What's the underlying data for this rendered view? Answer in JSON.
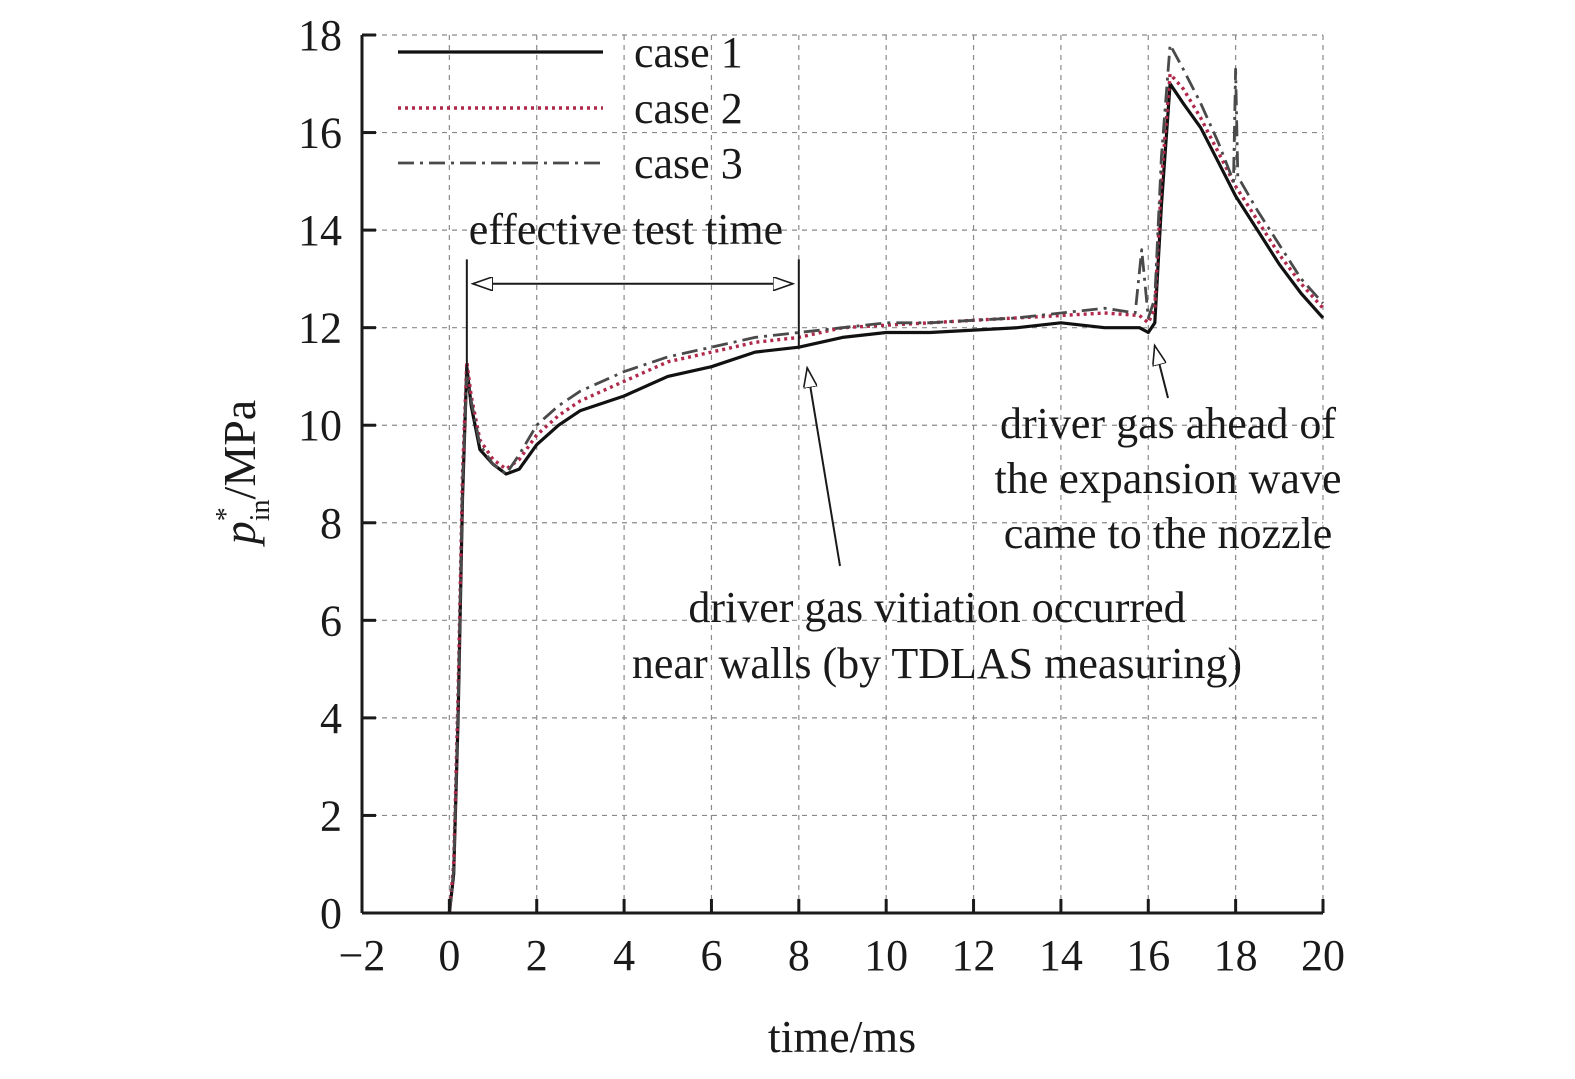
{
  "chart_data": {
    "type": "line",
    "xlabel": "time/ms",
    "ylabel": {
      "base": "p",
      "superscript": "*",
      "subscript": "in",
      "unit": "/MPa"
    },
    "xlim": [
      -2,
      20
    ],
    "ylim": [
      0,
      18
    ],
    "xticks": [
      -2,
      0,
      2,
      4,
      6,
      8,
      10,
      12,
      14,
      16,
      18,
      20
    ],
    "yticks": [
      0,
      2,
      4,
      6,
      8,
      10,
      12,
      14,
      16,
      18
    ],
    "xtick_labels": [
      "−2",
      "0",
      "2",
      "4",
      "6",
      "8",
      "10",
      "12",
      "14",
      "16",
      "18",
      "20"
    ],
    "ytick_labels": [
      "0",
      "2",
      "4",
      "6",
      "8",
      "10",
      "12",
      "14",
      "16",
      "18"
    ],
    "grid": true,
    "legend_placement": "top-left",
    "series": [
      {
        "name": "case 1",
        "color": "#111111",
        "line_style": "solid",
        "x": [
          0.0,
          0.1,
          0.2,
          0.3,
          0.4,
          0.5,
          0.7,
          1.0,
          1.3,
          1.6,
          2.0,
          2.5,
          3.0,
          4.0,
          5.0,
          6.0,
          7.0,
          8.0,
          9.0,
          10.0,
          11.0,
          12.0,
          13.0,
          14.0,
          15.0,
          15.8,
          16.0,
          16.15,
          16.3,
          16.5,
          16.8,
          17.2,
          17.6,
          18.0,
          18.5,
          19.0,
          19.5,
          20.0
        ],
        "y": [
          0.0,
          0.8,
          4.0,
          8.5,
          11.2,
          10.4,
          9.5,
          9.2,
          9.0,
          9.1,
          9.6,
          10.0,
          10.3,
          10.6,
          11.0,
          11.2,
          11.5,
          11.6,
          11.8,
          11.9,
          11.9,
          11.95,
          12.0,
          12.1,
          12.0,
          12.0,
          11.9,
          12.1,
          14.5,
          17.0,
          16.6,
          16.1,
          15.4,
          14.7,
          14.0,
          13.3,
          12.7,
          12.2
        ]
      },
      {
        "name": "case 2",
        "color": "#b0284a",
        "line_style": "dotted",
        "x": [
          0.0,
          0.1,
          0.2,
          0.3,
          0.4,
          0.5,
          0.7,
          1.0,
          1.3,
          1.6,
          2.0,
          2.5,
          3.0,
          4.0,
          5.0,
          6.0,
          7.0,
          8.0,
          9.0,
          10.0,
          11.0,
          12.0,
          13.0,
          14.0,
          15.0,
          15.8,
          16.0,
          16.15,
          16.3,
          16.5,
          16.8,
          17.2,
          17.6,
          18.0,
          18.5,
          19.0,
          19.5,
          20.0
        ],
        "y": [
          0.0,
          1.0,
          4.5,
          9.0,
          11.3,
          10.6,
          9.7,
          9.3,
          9.1,
          9.3,
          9.8,
          10.2,
          10.5,
          10.9,
          11.3,
          11.5,
          11.7,
          11.8,
          12.0,
          12.05,
          12.1,
          12.15,
          12.2,
          12.25,
          12.3,
          12.25,
          12.1,
          12.4,
          15.0,
          17.2,
          16.9,
          16.3,
          15.6,
          14.9,
          14.2,
          13.5,
          12.9,
          12.4
        ]
      },
      {
        "name": "case 3",
        "color": "#4a4a4a",
        "line_style": "dash-dot",
        "x": [
          0.0,
          0.1,
          0.2,
          0.3,
          0.4,
          0.5,
          0.7,
          1.0,
          1.3,
          1.6,
          2.0,
          2.5,
          3.0,
          4.0,
          5.0,
          6.0,
          7.0,
          8.0,
          9.0,
          10.0,
          11.0,
          12.0,
          13.0,
          14.0,
          15.0,
          15.7,
          15.85,
          16.0,
          16.15,
          16.3,
          16.5,
          16.8,
          17.2,
          17.6,
          17.95,
          18.0,
          18.05,
          18.5,
          19.0,
          19.5,
          20.0
        ],
        "y": [
          0.0,
          0.9,
          4.2,
          8.8,
          11.0,
          10.5,
          9.6,
          9.2,
          9.0,
          9.4,
          10.0,
          10.4,
          10.7,
          11.1,
          11.4,
          11.6,
          11.8,
          11.9,
          12.0,
          12.1,
          12.1,
          12.15,
          12.2,
          12.3,
          12.4,
          12.3,
          13.6,
          12.2,
          12.6,
          15.5,
          17.8,
          17.3,
          16.6,
          15.8,
          15.0,
          17.3,
          15.1,
          14.4,
          13.7,
          13.0,
          12.5
        ]
      }
    ],
    "annotations": [
      {
        "kind": "double-arrow",
        "text": "effective test time",
        "x_start": 0.4,
        "x_end": 8.0,
        "y": 12.9
      },
      {
        "kind": "arrow",
        "lines": [
          "driver gas vitiation occurred",
          "near walls (by TDLAS measuring)"
        ],
        "arrow_tip": [
          8.1,
          11.3
        ],
        "text_anchor": [
          13.0,
          6.0
        ]
      },
      {
        "kind": "arrow",
        "lines": [
          "driver gas ahead of",
          "the expansion wave",
          "came to the nozzle"
        ],
        "arrow_tip": [
          16.1,
          11.8
        ],
        "text_anchor": [
          16.5,
          10.0
        ]
      }
    ]
  }
}
